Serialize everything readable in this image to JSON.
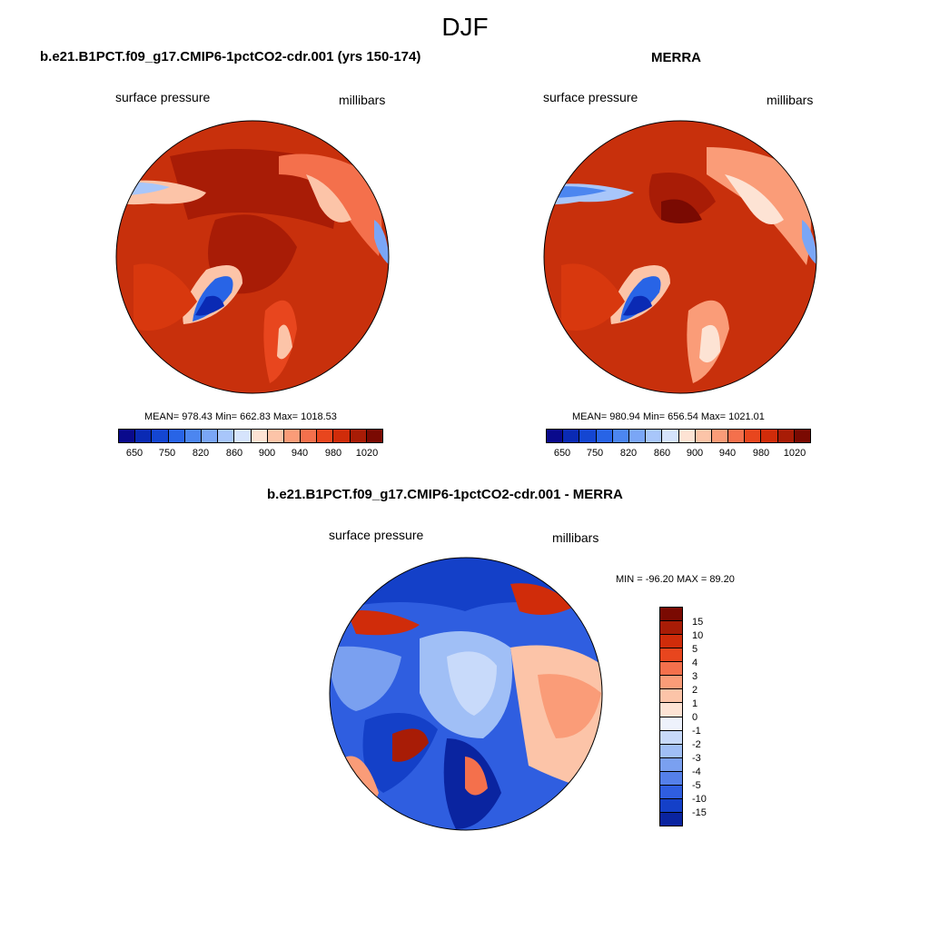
{
  "season": "DJF",
  "panels": [
    {
      "title": "b.e21.B1PCT.f09_g17.CMIP6-1pctCO2-cdr.001 (yrs 150-174)",
      "left_label": "surface pressure",
      "right_label": "millibars",
      "stats": "MEAN= 978.43  Min= 662.83  Max= 1018.53"
    },
    {
      "title": "MERRA",
      "left_label": "surface pressure",
      "right_label": "millibars",
      "stats": "MEAN= 980.94  Min= 656.54  Max= 1021.01"
    },
    {
      "title": "b.e21.B1PCT.f09_g17.CMIP6-1pctCO2-cdr.001 - MERRA",
      "left_label": "surface pressure",
      "right_label": "millibars",
      "stats": "MIN = -96.20 MAX =  89.20"
    }
  ],
  "colorbar_abs": {
    "tick_labels": [
      "650",
      "750",
      "820",
      "860",
      "900",
      "940",
      "980",
      "1020"
    ],
    "colors": [
      "#0a0a8c",
      "#0a2ab4",
      "#1446d2",
      "#2864e6",
      "#4c86f0",
      "#7aa6f6",
      "#a8c6fa",
      "#d6e4fc",
      "#fde3d4",
      "#fcc4a8",
      "#fa9c78",
      "#f4704c",
      "#e8461e",
      "#d02c0a",
      "#a81c06",
      "#7a0a02"
    ]
  },
  "colorbar_diff": {
    "tick_labels": [
      "15",
      "10",
      "5",
      "4",
      "3",
      "2",
      "1",
      "0",
      "-1",
      "-2",
      "-3",
      "-4",
      "-5",
      "-10",
      "-15"
    ],
    "colors": [
      "#7a0a02",
      "#a81c06",
      "#d02c0a",
      "#e8461e",
      "#f4704c",
      "#fa9c78",
      "#fcc4a8",
      "#fde3d4",
      "#eef2fc",
      "#c8dafa",
      "#a0bff6",
      "#7aa0f0",
      "#5580ea",
      "#2f5ee0",
      "#1440c8",
      "#0a24a0"
    ]
  }
}
